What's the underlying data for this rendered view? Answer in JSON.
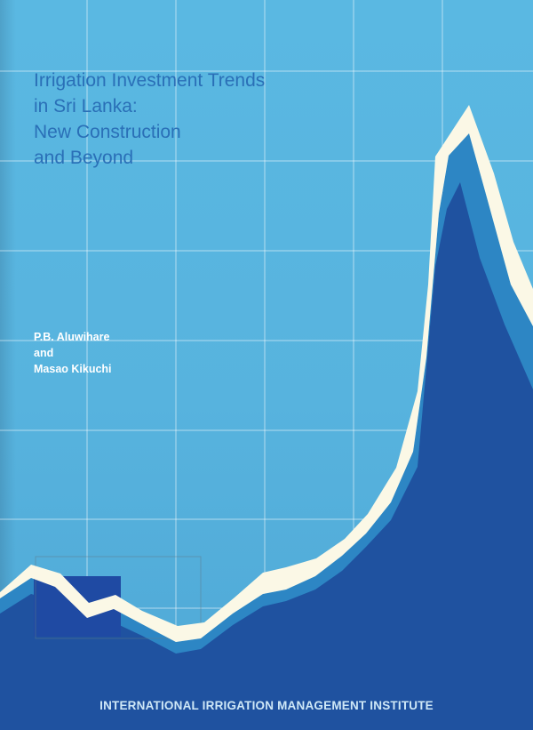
{
  "cover": {
    "title_lines": [
      "Irrigation Investment Trends",
      "in Sri Lanka:",
      "New Construction",
      "and Beyond"
    ],
    "author_lines": [
      "P.B. Aluwihare",
      "and",
      "Masao Kikuchi"
    ],
    "publisher": "INTERNATIONAL IRRIGATION MANAGEMENT INSTITUTE"
  },
  "colors": {
    "background": "#57b3de",
    "title_text": "#2a6fb7",
    "grid_lines": "#ffffff",
    "trend_band": "#fbf8e6",
    "mid_area": "#2d86c4",
    "dark_area": "#1f52a0",
    "small_rect": "#1f4aa3",
    "publisher_text": "#cfe8f7"
  }
}
